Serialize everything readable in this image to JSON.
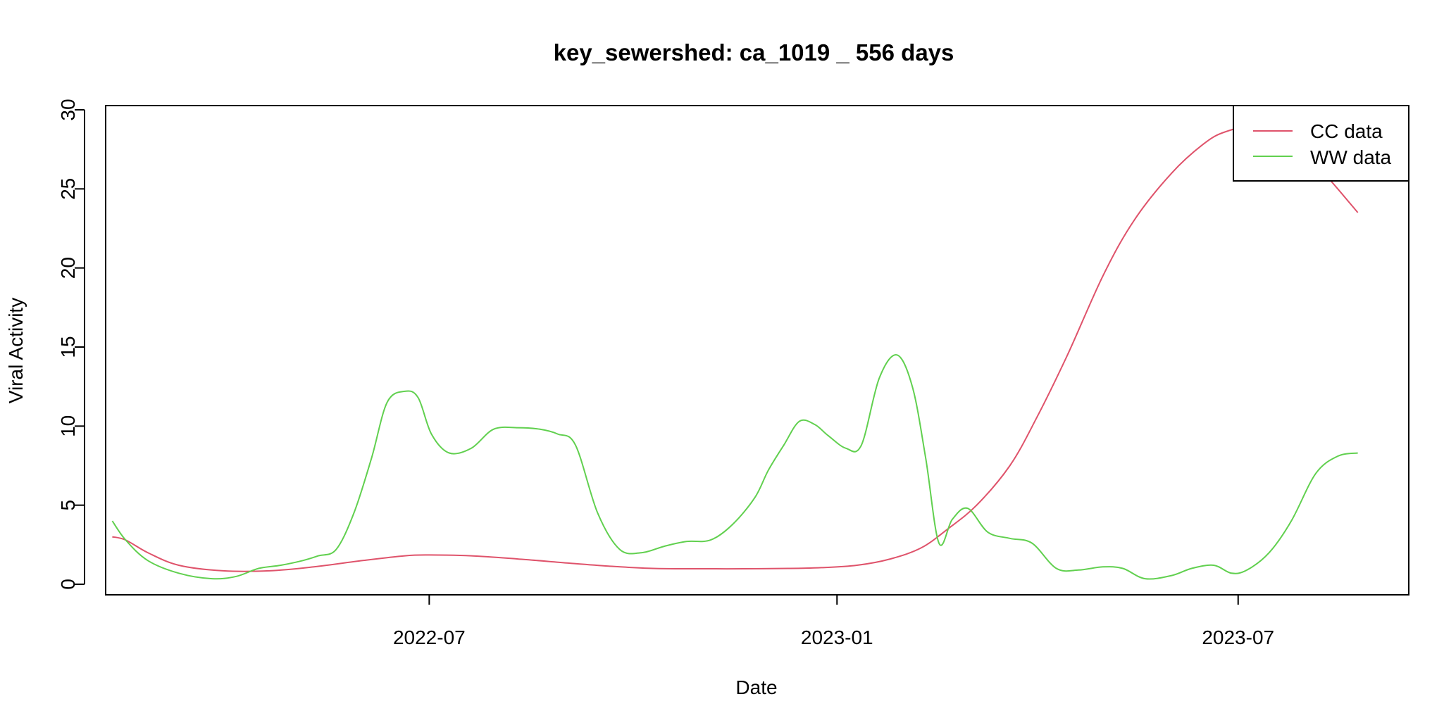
{
  "chart_data": {
    "type": "line",
    "title": "key_sewershed:  ca_1019 _ 556  days",
    "xlabel": "Date",
    "ylabel": "Viral Activity",
    "ylim": [
      0,
      30
    ],
    "yticks": [
      0,
      5,
      10,
      15,
      20,
      25,
      30
    ],
    "xlim": [
      "2022-02-05",
      "2023-09-16"
    ],
    "xticks": [
      {
        "date": "2022-07-01",
        "label": "2022-07"
      },
      {
        "date": "2023-01-01",
        "label": "2023-01"
      },
      {
        "date": "2023-07-01",
        "label": "2023-07"
      }
    ],
    "grid": false,
    "legend_position": "top-right",
    "series": [
      {
        "name": "CC data",
        "color": "#DF536B",
        "x": [
          "2022-02-08",
          "2022-02-14",
          "2022-02-24",
          "2022-03-10",
          "2022-03-30",
          "2022-04-20",
          "2022-05-10",
          "2022-06-01",
          "2022-06-20",
          "2022-07-01",
          "2022-07-20",
          "2022-08-10",
          "2022-09-01",
          "2022-09-20",
          "2022-10-10",
          "2022-11-01",
          "2022-11-20",
          "2022-12-10",
          "2022-12-25",
          "2023-01-10",
          "2023-01-25",
          "2023-02-08",
          "2023-02-20",
          "2023-03-05",
          "2023-03-20",
          "2023-04-01",
          "2023-04-15",
          "2023-05-01",
          "2023-05-15",
          "2023-06-01",
          "2023-06-15",
          "2023-06-25",
          "2023-07-10",
          "2023-07-25",
          "2023-08-10",
          "2023-08-24"
        ],
        "y": [
          3.0,
          2.8,
          2.0,
          1.2,
          0.85,
          0.85,
          1.1,
          1.5,
          1.8,
          1.85,
          1.8,
          1.6,
          1.35,
          1.15,
          1.0,
          0.98,
          0.98,
          1.0,
          1.05,
          1.2,
          1.6,
          2.3,
          3.5,
          5.0,
          7.5,
          10.5,
          14.5,
          19.5,
          23.0,
          26.0,
          27.8,
          28.6,
          29.0,
          28.2,
          25.8,
          23.5
        ]
      },
      {
        "name": "WW data",
        "color": "#61D04F",
        "x": [
          "2022-02-08",
          "2022-02-14",
          "2022-02-24",
          "2022-03-10",
          "2022-03-25",
          "2022-04-05",
          "2022-04-15",
          "2022-04-25",
          "2022-05-05",
          "2022-05-12",
          "2022-05-20",
          "2022-05-28",
          "2022-06-05",
          "2022-06-12",
          "2022-06-20",
          "2022-06-26",
          "2022-07-02",
          "2022-07-10",
          "2022-07-20",
          "2022-07-30",
          "2022-08-10",
          "2022-08-20",
          "2022-08-28",
          "2022-09-05",
          "2022-09-15",
          "2022-09-25",
          "2022-10-05",
          "2022-10-15",
          "2022-10-25",
          "2022-11-05",
          "2022-11-15",
          "2022-11-25",
          "2022-12-01",
          "2022-12-08",
          "2022-12-15",
          "2022-12-22",
          "2022-12-28",
          "2023-01-05",
          "2023-01-12",
          "2023-01-20",
          "2023-01-28",
          "2023-02-04",
          "2023-02-10",
          "2023-02-16",
          "2023-02-22",
          "2023-03-01",
          "2023-03-10",
          "2023-03-20",
          "2023-03-30",
          "2023-04-10",
          "2023-04-20",
          "2023-05-01",
          "2023-05-10",
          "2023-05-20",
          "2023-06-01",
          "2023-06-10",
          "2023-06-20",
          "2023-06-28",
          "2023-07-05",
          "2023-07-15",
          "2023-07-25",
          "2023-08-05",
          "2023-08-15",
          "2023-08-24"
        ],
        "y": [
          4.0,
          2.8,
          1.5,
          0.7,
          0.35,
          0.5,
          1.0,
          1.2,
          1.5,
          1.8,
          2.2,
          4.5,
          8.0,
          11.5,
          12.2,
          11.8,
          9.5,
          8.3,
          8.6,
          9.8,
          9.9,
          9.8,
          9.5,
          8.8,
          4.5,
          2.2,
          2.0,
          2.4,
          2.7,
          2.8,
          3.8,
          5.5,
          7.2,
          8.8,
          10.3,
          10.1,
          9.4,
          8.6,
          8.8,
          13.0,
          14.5,
          12.5,
          8.0,
          2.6,
          4.1,
          4.8,
          3.3,
          2.9,
          2.6,
          1.0,
          0.9,
          1.1,
          1.0,
          0.35,
          0.55,
          1.0,
          1.2,
          0.7,
          0.9,
          2.0,
          4.0,
          7.0,
          8.1,
          8.3
        ]
      }
    ]
  }
}
